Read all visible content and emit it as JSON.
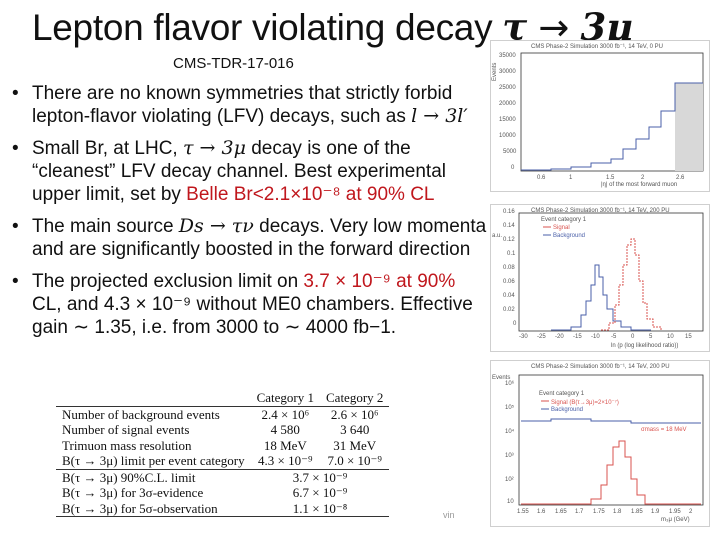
{
  "slide": {
    "title_text": "Lepton flavor violating decay ",
    "title_math_tau": "τ",
    "title_arrow": " → ",
    "title_math_mu": "3μ",
    "reference": "CMS-TDR-17-016",
    "bullets": [
      {
        "text": "There are no known symmetries that strictly forbid lepton-flavor violating (LFV) decays, such as ",
        "math": "l → 3l′"
      },
      {
        "pre": "Small Br, at LHC, ",
        "math": "τ → 3μ",
        "post": " decay is one of the “cleanest” LFV decay channel. Best experimental upper limit, set by ",
        "highlight": "Belle Br<2.1×10⁻⁸ at 90% CL"
      },
      {
        "pre": "The main source ",
        "math": "Ds → τν",
        "post": " decays. Very low momenta and are significantly boosted in the forward direction"
      },
      {
        "pre": "The projected exclusion limit on ",
        "highlight": "3.7 × 10⁻⁹ at 90%",
        "post": " CL, and 4.3 × 10⁻⁹ without ME0 chambers. Effective gain ∼ 1.35, i.e. from 3000 to ∼ 4000 fb−1."
      }
    ],
    "footer": "vin"
  },
  "plots": [
    {
      "header": "CMS Phase-2 Simulation   3000 fb⁻¹, 14 TeV, 0 PU",
      "ylabel": "Events",
      "xlabel": "|η| of the most forward muon",
      "yticks": [
        "35000",
        "30000",
        "25000",
        "20000",
        "15000",
        "10000",
        "5000",
        "0"
      ],
      "xticks": [
        "0.6",
        "1",
        "1.5",
        "2",
        "2.6"
      ]
    },
    {
      "header": "CMS Phase-2 Simulation   3000 fb⁻¹, 14 TeV, 200 PU",
      "ylabel": "a.u.",
      "xlabel": "ln (p (log likelihood ratio))",
      "legend": [
        "Event category 1",
        "Signal",
        "Background"
      ],
      "yticks": [
        "0.16",
        "0.14",
        "0.12",
        "0.1",
        "0.08",
        "0.06",
        "0.04",
        "0.02",
        "0"
      ],
      "xticks": [
        "-30",
        "-25",
        "-20",
        "-15",
        "-10",
        "-5",
        "0",
        "5",
        "10",
        "15"
      ]
    },
    {
      "header": "CMS Phase-2 Simulation   3000 fb⁻¹, 14 TeV, 200 PU",
      "ylabel": "Events",
      "xlabel": "m₃μ (GeV)",
      "legend": [
        "Event category 1",
        "Signal (B(τ→3μ)=2×10⁻⁷)",
        "Background"
      ],
      "annotation": "σmass = 18 MeV",
      "yticks": [
        "10⁶",
        "10⁵",
        "10⁴",
        "10³",
        "10²",
        "10"
      ],
      "xticks": [
        "1.55",
        "1.6",
        "1.65",
        "1.7",
        "1.75",
        "1.8",
        "1.85",
        "1.9",
        "1.95",
        "2"
      ]
    }
  ],
  "table": {
    "headers": [
      "",
      "Category 1",
      "Category 2"
    ],
    "rows": [
      [
        "Number of background events",
        "2.4 × 10⁶",
        "2.6 × 10⁶"
      ],
      [
        "Number of signal events",
        "4 580",
        "3 640"
      ],
      [
        "Trimuon mass resolution",
        "18 MeV",
        "31 MeV"
      ],
      [
        "B(τ → 3μ) limit per event category",
        "4.3 × 10⁻⁹",
        "7.0 × 10⁻⁹"
      ]
    ],
    "combined": [
      [
        "B(τ → 3μ) 90%C.L. limit",
        "3.7 × 10⁻⁹"
      ],
      [
        "B(τ → 3μ) for 3σ-evidence",
        "6.7 × 10⁻⁹"
      ],
      [
        "B(τ → 3μ) for 5σ-observation",
        "1.1 × 10⁻⁸"
      ]
    ]
  },
  "colors": {
    "highlight": "#c0171d",
    "signal": "#d9534f",
    "background": "#4a5fa8",
    "fill": "#d8d8d8"
  }
}
